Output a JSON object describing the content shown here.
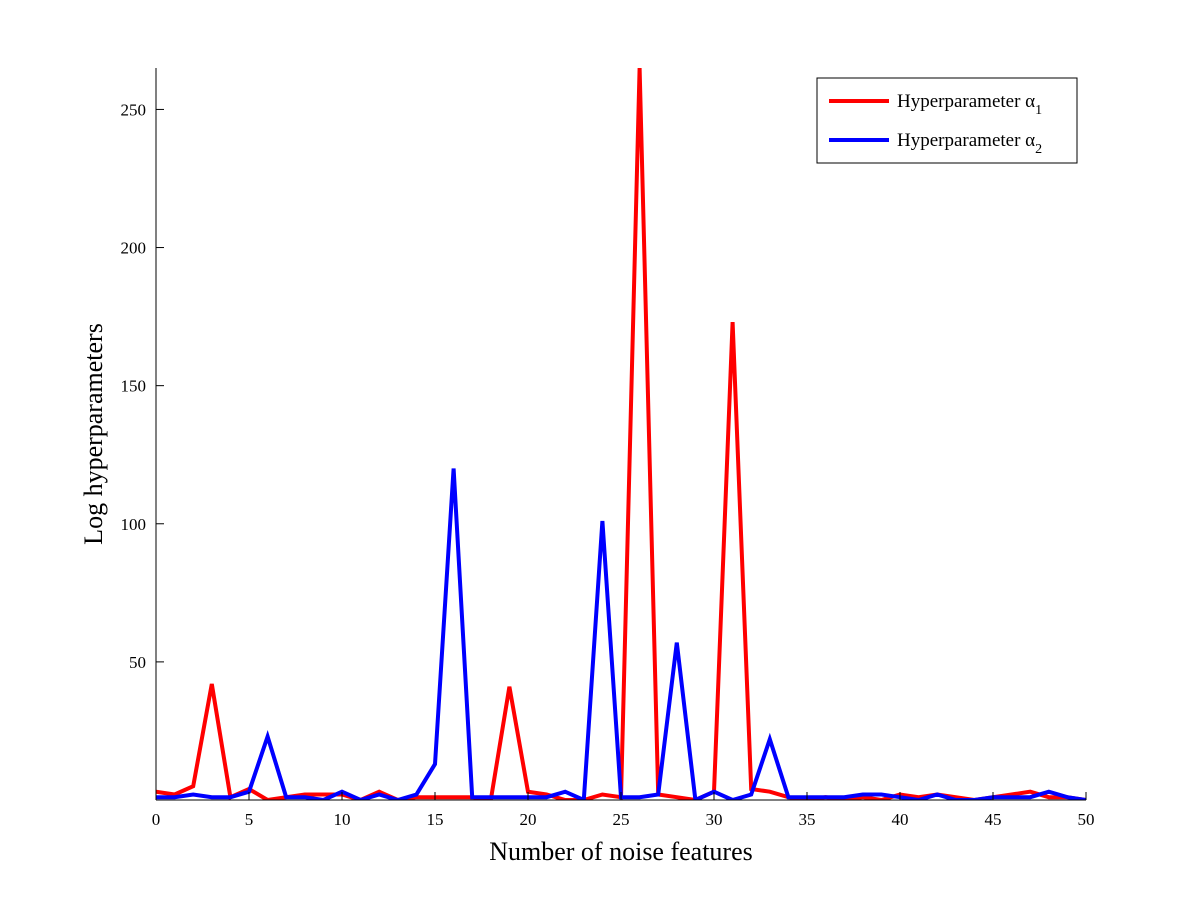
{
  "chart_data": {
    "type": "line",
    "title": "",
    "xlabel": "Number of noise features",
    "ylabel": "Log hyperparameters",
    "xlim": [
      0,
      50
    ],
    "ylim": [
      0,
      265
    ],
    "xticks": [
      0,
      5,
      10,
      15,
      20,
      25,
      30,
      35,
      40,
      45,
      50
    ],
    "yticks": [
      50,
      100,
      150,
      200,
      250
    ],
    "grid": false,
    "legend_position": "top-right",
    "x": [
      0,
      1,
      2,
      3,
      4,
      5,
      6,
      7,
      8,
      9,
      10,
      11,
      12,
      13,
      14,
      15,
      16,
      17,
      18,
      19,
      20,
      21,
      22,
      23,
      24,
      25,
      26,
      27,
      28,
      29,
      30,
      31,
      32,
      33,
      34,
      35,
      36,
      37,
      38,
      39,
      40,
      41,
      42,
      43,
      44,
      45,
      46,
      47,
      48,
      49,
      50
    ],
    "series": [
      {
        "name": "Hyperparameter α",
        "subscript": "1",
        "color": "#ff0000",
        "values": [
          3,
          2,
          5,
          42,
          1,
          4,
          0,
          1,
          2,
          2,
          2,
          0,
          3,
          0,
          1,
          1,
          1,
          1,
          0,
          41,
          3,
          2,
          0,
          0,
          2,
          1,
          265,
          2,
          1,
          0,
          3,
          173,
          4,
          3,
          1,
          0,
          1,
          0,
          1,
          0,
          2,
          1,
          2,
          1,
          0,
          1,
          2,
          3,
          1,
          1,
          0
        ]
      },
      {
        "name": "Hyperparameter α",
        "subscript": "2",
        "color": "#0000ff",
        "values": [
          1,
          1,
          2,
          1,
          1,
          3,
          23,
          1,
          1,
          0,
          3,
          0,
          2,
          0,
          2,
          13,
          120,
          1,
          1,
          1,
          1,
          1,
          3,
          0,
          101,
          1,
          1,
          2,
          57,
          0,
          3,
          0,
          2,
          22,
          1,
          1,
          1,
          1,
          2,
          2,
          1,
          0,
          2,
          0,
          0,
          1,
          1,
          1,
          3,
          1,
          0
        ]
      }
    ]
  }
}
